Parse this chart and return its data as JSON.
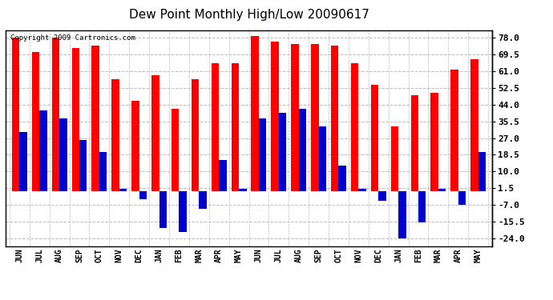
{
  "title": "Dew Point Monthly High/Low 20090617",
  "copyright": "Copyright 2009 Cartronics.com",
  "months": [
    "JUN",
    "JUL",
    "AUG",
    "SEP",
    "OCT",
    "NOV",
    "DEC",
    "JAN",
    "FEB",
    "MAR",
    "APR",
    "MAY",
    "JUN",
    "JUL",
    "AUG",
    "SEP",
    "OCT",
    "NOV",
    "DEC",
    "JAN",
    "FEB",
    "MAR",
    "APR",
    "MAY"
  ],
  "highs": [
    78,
    71,
    78,
    73,
    74,
    57,
    46,
    59,
    42,
    57,
    65,
    65,
    79,
    76,
    75,
    75,
    74,
    65,
    54,
    33,
    49,
    50,
    62,
    67
  ],
  "lows": [
    30,
    41,
    37,
    26,
    20,
    1,
    -4,
    -19,
    -21,
    -9,
    16,
    1,
    37,
    40,
    42,
    33,
    13,
    1,
    -5,
    -24,
    -16,
    1,
    -7,
    20
  ],
  "bar_color_high": "#ff0000",
  "bar_color_low": "#0000cc",
  "yticks": [
    -24.0,
    -15.5,
    -7.0,
    1.5,
    10.0,
    18.5,
    27.0,
    35.5,
    44.0,
    52.5,
    61.0,
    69.5,
    78.0
  ],
  "ylim": [
    -28,
    82
  ],
  "background_color": "#ffffff",
  "grid_color": "#bbbbbb",
  "title_fontsize": 11
}
